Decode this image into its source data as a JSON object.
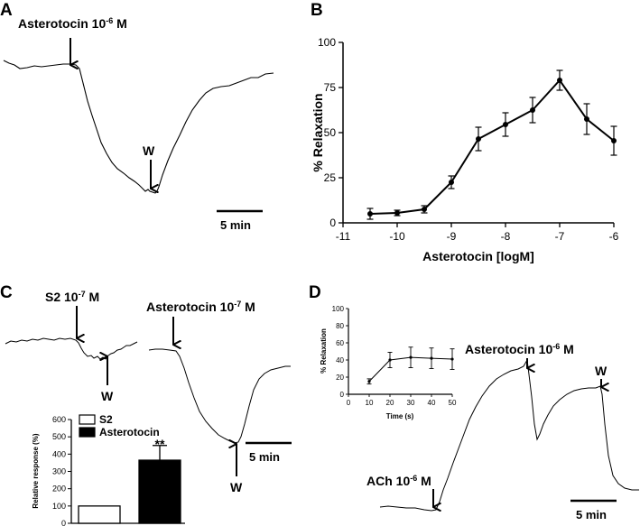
{
  "panels": {
    "A": {
      "label": "A",
      "drug_label": "Asterotocin 10",
      "drug_exp": "-6",
      "drug_unit": " M",
      "wash": "W",
      "scale": "5 min"
    },
    "B": {
      "label": "B",
      "ylabel": "% Relaxation",
      "xlabel": "Asterotocin [logM]",
      "x_ticks": [
        "-11",
        "-10",
        "-9",
        "-8",
        "-7",
        "-6"
      ],
      "y_ticks": [
        "0",
        "25",
        "50",
        "75",
        "100"
      ]
    },
    "C": {
      "label": "C",
      "s2_label": "S2 10",
      "s2_exp": "-7",
      "s2_unit": " M",
      "drug_label": "Asterotocin 10",
      "drug_exp": "-7",
      "drug_unit": " M",
      "wash1": "W",
      "wash2": "W",
      "scale": "5 min",
      "legend": [
        "S2",
        "Asterotocin"
      ],
      "ylabel": "Relative response (%)",
      "y_ticks": [
        "0",
        "100",
        "200",
        "300",
        "400",
        "500",
        "600"
      ],
      "significance": "**"
    },
    "D": {
      "label": "D",
      "drug_label": "Asterotocin 10",
      "drug_exp": "-6",
      "drug_unit": " M",
      "ach_label": "ACh 10",
      "ach_exp": "-6",
      "ach_unit": " M",
      "wash": "W",
      "scale": "5 min",
      "inset_ylabel": "% Relaxation",
      "inset_xlabel": "Time (s)",
      "inset_x_ticks": [
        "0",
        "10",
        "20",
        "30",
        "40",
        "50"
      ],
      "inset_y_ticks": [
        "0",
        "20",
        "40",
        "60",
        "80",
        "100"
      ]
    }
  },
  "chart_data": [
    {
      "panel": "B",
      "type": "line",
      "title": "",
      "xlabel": "Asterotocin [logM]",
      "ylabel": "% Relaxation",
      "xlim": [
        -11,
        -6
      ],
      "ylim": [
        0,
        100
      ],
      "x": [
        -10.5,
        -10,
        -9.5,
        -9,
        -8.5,
        -8,
        -7.5,
        -7,
        -6.5,
        -6
      ],
      "values": [
        5,
        5.5,
        7.5,
        22.5,
        46.5,
        54.5,
        62.5,
        79,
        57.5,
        45.5
      ],
      "errors": [
        3,
        1.5,
        2,
        3.5,
        6.5,
        6.5,
        7,
        5.5,
        8.5,
        8
      ]
    },
    {
      "panel": "C",
      "type": "bar",
      "title": "",
      "ylabel": "Relative response (%)",
      "categories": [
        "S2",
        "Asterotocin"
      ],
      "values": [
        100,
        365
      ],
      "errors": [
        0,
        85
      ],
      "ylim": [
        0,
        600
      ]
    },
    {
      "panel": "D-inset",
      "type": "line",
      "title": "",
      "xlabel": "Time (s)",
      "ylabel": "% Relaxation",
      "xlim": [
        0,
        50
      ],
      "ylim": [
        0,
        100
      ],
      "x": [
        10,
        20,
        30,
        40,
        50
      ],
      "values": [
        15,
        40,
        43,
        42,
        41
      ],
      "errors": [
        3,
        9,
        12,
        12,
        12
      ]
    }
  ]
}
